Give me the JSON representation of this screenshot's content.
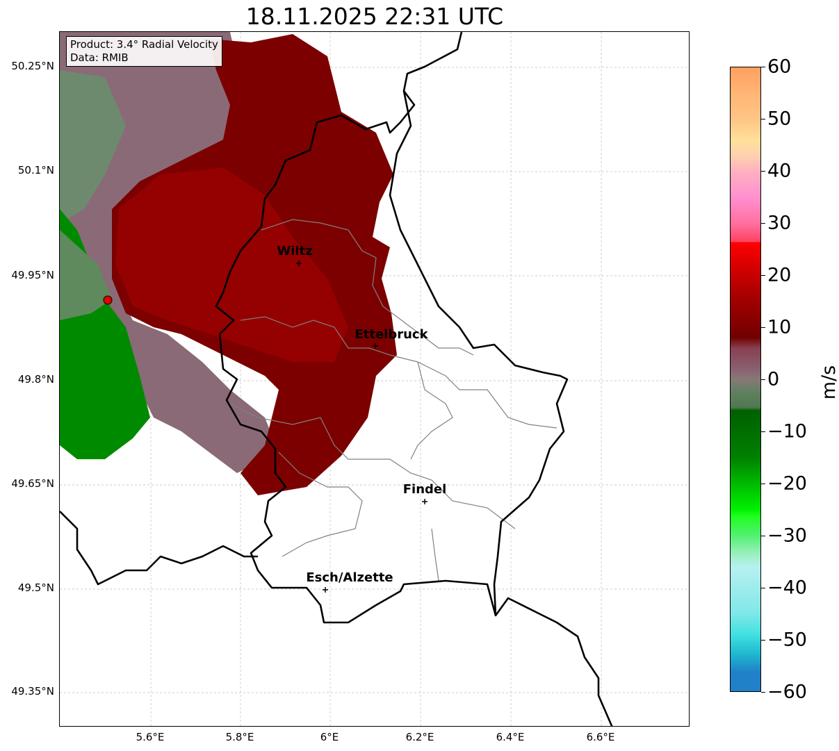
{
  "title": "18.11.2025 22:31 UTC",
  "info": {
    "product": "Product: 3.4° Radial Velocity",
    "data": "Data: RMIB"
  },
  "axes": {
    "lat_ticks": [
      "50.25°N",
      "50.1°N",
      "49.95°N",
      "49.8°N",
      "49.65°N",
      "49.5°N",
      "49.35°N"
    ],
    "lon_ticks": [
      "5.6°E",
      "5.8°E",
      "6°E",
      "6.2°E",
      "6.4°E",
      "6.6°E"
    ]
  },
  "cities": [
    {
      "name": "Wiltz"
    },
    {
      "name": "Ettelbruck"
    },
    {
      "name": "Findel"
    },
    {
      "name": "Esch/Alzette"
    }
  ],
  "colorbar": {
    "unit": "m/s",
    "ticks": [
      "60",
      "50",
      "40",
      "30",
      "20",
      "10",
      "0",
      "−10",
      "−20",
      "−30",
      "−40",
      "−50",
      "−60"
    ],
    "range": [
      -60,
      60
    ]
  },
  "colors": {
    "outbound": "#7a0000",
    "inbound": "#008800",
    "near_zero": "#886878",
    "border": "#000000",
    "canton": "#808080"
  }
}
